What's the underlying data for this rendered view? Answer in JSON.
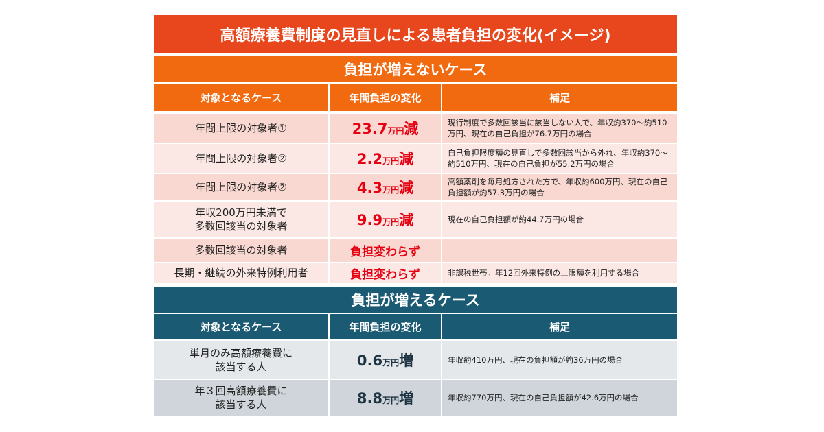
{
  "title": "高額療養費制度の見直しによる患者負担の変化(イメージ)",
  "sections": [
    {
      "heading": "負担が増えないケース",
      "columns": [
        "対象となるケース",
        "年間負担の変化",
        "補足"
      ],
      "rows": [
        {
          "case": "年間上限の対象者①",
          "change": {
            "amount": "23.7",
            "unit": "万円",
            "direction": "減"
          },
          "note": "現行制度で多数回該当に該当しない人で、年収約370～約510万円、現在の自己負担が76.7万円の場合"
        },
        {
          "case": "年間上限の対象者②",
          "change": {
            "amount": "2.2",
            "unit": "万円",
            "direction": "減"
          },
          "note": "自己負担限度額の見直しで多数回該当から外れ、年収約370～約510万円、現在の自己負担が55.2万円の場合"
        },
        {
          "case": "年間上限の対象者②",
          "change": {
            "amount": "4.3",
            "unit": "万円",
            "direction": "減"
          },
          "note": "高額薬剤を毎月処方された方で、年収約600万円、現在の自己負担額が約57.3万円の場合"
        },
        {
          "case": "年収200万円未満で\n多数回該当の対象者",
          "change": {
            "amount": "9.9",
            "unit": "万円",
            "direction": "減"
          },
          "note": "現在の自己負担額が約44.7万円の場合"
        },
        {
          "case": "多数回該当の対象者",
          "change": {
            "text": "負担変わらず"
          }
        },
        {
          "case": "長期・継続の外来特例利用者",
          "change": {
            "text": "負担変わらず"
          },
          "note": "非課税世帯。年12回外来特例の上限額を利用する場合"
        }
      ]
    },
    {
      "heading": "負担が増えるケース",
      "columns": [
        "対象となるケース",
        "年間負担の変化",
        "補足"
      ],
      "rows": [
        {
          "case": "単月のみ高額療養費に\n該当する人",
          "change": {
            "amount": "0.6",
            "unit": "万円",
            "direction": "増"
          },
          "note": "年収約410万円、現在の負担額が約36万円の場合"
        },
        {
          "case": "年３回高額療養費に\n該当する人",
          "change": {
            "amount": "8.8",
            "unit": "万円",
            "direction": "増"
          },
          "note": "年収約770万円、現在の自己負担額が42.6万円の場合"
        }
      ]
    }
  ]
}
